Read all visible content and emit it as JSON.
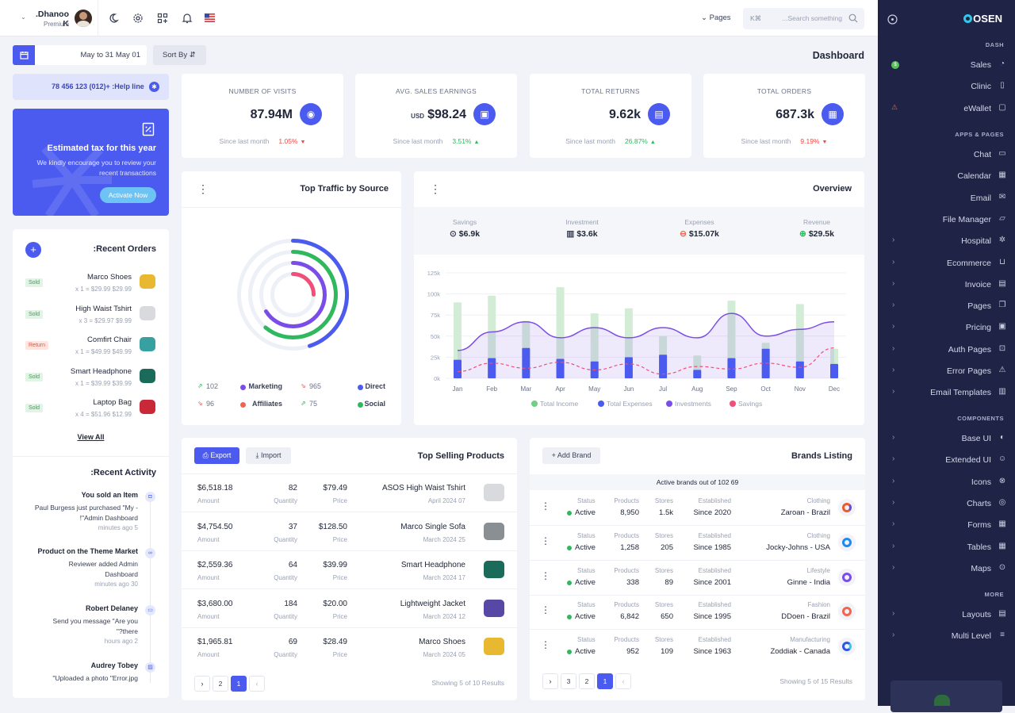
{
  "topbar": {
    "user_name": ".Dhanoo K",
    "user_tier": "Premium",
    "pages_label": "Pages",
    "search_shortcut": "K⌘",
    "search_placeholder": "...Search something"
  },
  "toolbar": {
    "date_range": "May to 31 May 01",
    "sort_label": "Sort By",
    "page_title": "Dashboard"
  },
  "helpline": "78 456 123 (012)+ :Help line",
  "tax": {
    "title": "Estimated tax for this year",
    "text1": "We kindly encourage you to review your",
    "text2": "recent transactions",
    "button": "Activate Now"
  },
  "stats": [
    {
      "title": "NUMBER OF VISITS",
      "currency": "",
      "value": "87.94M",
      "icon": "eye-icon",
      "glyph": "◉",
      "foot": "Since last month",
      "change": "1.05%",
      "dir": "down"
    },
    {
      "title": "AVG. SALES EARNINGS",
      "currency": "USD",
      "value": "$98.24",
      "icon": "wallet-icon",
      "glyph": "▣",
      "foot": "Since last month",
      "change": "3.51%",
      "dir": "up"
    },
    {
      "title": "TOTAL RETURNS",
      "currency": "",
      "value": "9.62k",
      "icon": "document-icon",
      "glyph": "▤",
      "foot": "Since last month",
      "change": "26.87%",
      "dir": "up"
    },
    {
      "title": "TOTAL ORDERS",
      "currency": "",
      "value": "687.3k",
      "icon": "box-icon",
      "glyph": "▦",
      "foot": "Since last month",
      "change": "9.19%",
      "dir": "down"
    }
  ],
  "orders": {
    "title": ":Recent Orders",
    "view_all": "View All",
    "items": [
      {
        "status": "Sold",
        "name": "Marco Shoes",
        "detail": "x 1 = $29.99 $29.99"
      },
      {
        "status": "Sold",
        "name": "High Waist Tshirt",
        "detail": "x 3 = $29.97 $9.99"
      },
      {
        "status": "Return",
        "name": "Comfirt Chair",
        "detail": "x 1 = $49.99 $49.99"
      },
      {
        "status": "Sold",
        "name": "Smart Headphone",
        "detail": "x 1 = $39.99 $39.99"
      },
      {
        "status": "Sold",
        "name": "Laptop Bag",
        "detail": "x 4 = $51.96 $12.99"
      }
    ]
  },
  "activity": {
    "title": ":Recent Activity",
    "items": [
      {
        "title": "You sold an Item",
        "l1": "Paul Burgess just purchased \"My -",
        "l2": "!\"Admin Dashboard",
        "time": "minutes ago 5"
      },
      {
        "title": "Product on the Theme Market",
        "l1": "Reviewer added Admin",
        "l2": "Dashboard",
        "time": "minutes ago 30"
      },
      {
        "title": "Robert Delaney",
        "l1": "Send you message \"Are you",
        "l2": "\"?there",
        "time": "hours ago 2"
      },
      {
        "title": "Audrey Tobey",
        "l1": "\"Uploaded a photo \"Error.jpg",
        "l2": "",
        "time": ""
      }
    ]
  },
  "traffic": {
    "title": "Top Traffic by Source",
    "legend": [
      {
        "value": "102",
        "label": "Marketing",
        "color": "#7b4de8",
        "trend": "up"
      },
      {
        "value": "965",
        "label": "Direct",
        "color": "#4b5bf0",
        "trend": "down"
      },
      {
        "value": "96",
        "label": "Affiliates",
        "color": "#f0654f",
        "trend": "down"
      },
      {
        "value": "75",
        "label": "Social",
        "color": "#2fb85d",
        "trend": "up"
      }
    ]
  },
  "overview": {
    "title": "Overview",
    "summary": [
      {
        "label": "Savings",
        "value": "$6.9k"
      },
      {
        "label": "Investment",
        "value": "$3.6k"
      },
      {
        "label": "Expenses",
        "value": "$15.07k"
      },
      {
        "label": "Revenue",
        "value": "$29.5k"
      }
    ]
  },
  "chart_data": {
    "type": "bar",
    "title": "Overview",
    "categories": [
      "Jan",
      "Feb",
      "Mar",
      "Apr",
      "May",
      "Jun",
      "Jul",
      "Aug",
      "Sep",
      "Oct",
      "Nov",
      "Dec"
    ],
    "ylim": [
      0,
      125000
    ],
    "yticks": [
      "0k",
      "25k",
      "50k",
      "75k",
      "100k",
      "125k"
    ],
    "series": [
      {
        "name": "Total Income",
        "type": "bar",
        "color": "#d3ecd6",
        "values": [
          90000,
          98000,
          68000,
          108000,
          77000,
          83000,
          50000,
          27000,
          92000,
          42000,
          88000,
          35000
        ]
      },
      {
        "name": "Total Expenses",
        "type": "bar",
        "color": "#4b5bf0",
        "values": [
          22000,
          24000,
          36000,
          23000,
          20000,
          25000,
          28000,
          10000,
          24000,
          35000,
          20000,
          17000
        ]
      },
      {
        "name": "Investments",
        "type": "area",
        "color": "#7b4de8",
        "values": [
          33000,
          55000,
          67000,
          48000,
          60000,
          48000,
          60000,
          48000,
          77000,
          50000,
          58000,
          67000
        ]
      },
      {
        "name": "Savings",
        "type": "line",
        "color": "#ef4f79",
        "values": [
          8000,
          18000,
          12000,
          19000,
          10000,
          17000,
          5000,
          14000,
          11000,
          18000,
          13000,
          36000
        ]
      }
    ]
  },
  "products": {
    "title": "Top Selling Products",
    "export": "Export",
    "import": "Import",
    "amount_label": "Amount",
    "qty_label": "Quantity",
    "price_label": "Price",
    "rows": [
      {
        "amount": "$6,518.18",
        "qty": "82",
        "price": "$79.49",
        "name": "ASOS High Waist Tshirt",
        "date": "April 2024 07"
      },
      {
        "amount": "$4,754.50",
        "qty": "37",
        "price": "$128.50",
        "name": "Marco Single Sofa",
        "date": "March 2024 25"
      },
      {
        "amount": "$2,559.36",
        "qty": "64",
        "price": "$39.99",
        "name": "Smart Headphone",
        "date": "March 2024 17"
      },
      {
        "amount": "$3,680.00",
        "qty": "184",
        "price": "$20.00",
        "name": "Lightweight Jacket",
        "date": "March 2024 12"
      },
      {
        "amount": "$1,965.81",
        "qty": "69",
        "price": "$28.49",
        "name": "Marco Shoes",
        "date": "March 2024 05"
      }
    ],
    "pages": [
      "2",
      "1"
    ],
    "showing": "Showing 5 of 10 Results"
  },
  "brands": {
    "title": "Brands Listing",
    "add": "Add Brand",
    "active_text": "Active brands out of 102 69",
    "status_label": "Status",
    "products_label": "Products",
    "stores_label": "Stores",
    "est_label": "Established",
    "rows": [
      {
        "status": "Active",
        "products": "8,950",
        "stores": "1.5k",
        "est": "Since 2020",
        "category": "Clothing",
        "name": "Zaroan - Brazil"
      },
      {
        "status": "Active",
        "products": "1,258",
        "stores": "205",
        "est": "Since 1985",
        "category": "Clothing",
        "name": "Jocky-Johns - USA"
      },
      {
        "status": "Active",
        "products": "338",
        "stores": "89",
        "est": "Since 2001",
        "category": "Lifestyle",
        "name": "Ginne - India"
      },
      {
        "status": "Active",
        "products": "6,842",
        "stores": "650",
        "est": "Since 1995",
        "category": "Fashion",
        "name": "DDoen - Brazil"
      },
      {
        "status": "Active",
        "products": "952",
        "stores": "109",
        "est": "Since 1963",
        "category": "Manufacturing",
        "name": "Zoddiak - Canada"
      }
    ],
    "pages": [
      "3",
      "2",
      "1"
    ],
    "showing": "Showing 5 of 15 Results"
  },
  "sidebar": {
    "logo": "OSEN",
    "sections": {
      "dash": "DASH",
      "apps": "APPS & PAGES",
      "components": "COMPONENTS",
      "more": "MORE"
    },
    "dash": [
      {
        "label": "Sales"
      },
      {
        "label": "Clinic"
      },
      {
        "label": "eWallet"
      }
    ],
    "apps": [
      {
        "label": "Chat"
      },
      {
        "label": "Calendar"
      },
      {
        "label": "Email"
      },
      {
        "label": "File Manager"
      },
      {
        "label": "Hospital"
      },
      {
        "label": "Ecommerce"
      },
      {
        "label": "Invoice"
      },
      {
        "label": "Pages"
      },
      {
        "label": "Pricing"
      },
      {
        "label": "Auth Pages"
      },
      {
        "label": "Error Pages"
      },
      {
        "label": "Email Templates"
      }
    ],
    "components": [
      {
        "label": "Base UI"
      },
      {
        "label": "Extended UI"
      },
      {
        "label": "Icons"
      },
      {
        "label": "Charts"
      },
      {
        "label": "Forms"
      },
      {
        "label": "Tables"
      },
      {
        "label": "Maps"
      }
    ],
    "more": [
      {
        "label": "Layouts"
      },
      {
        "label": "Multi Level"
      }
    ]
  }
}
